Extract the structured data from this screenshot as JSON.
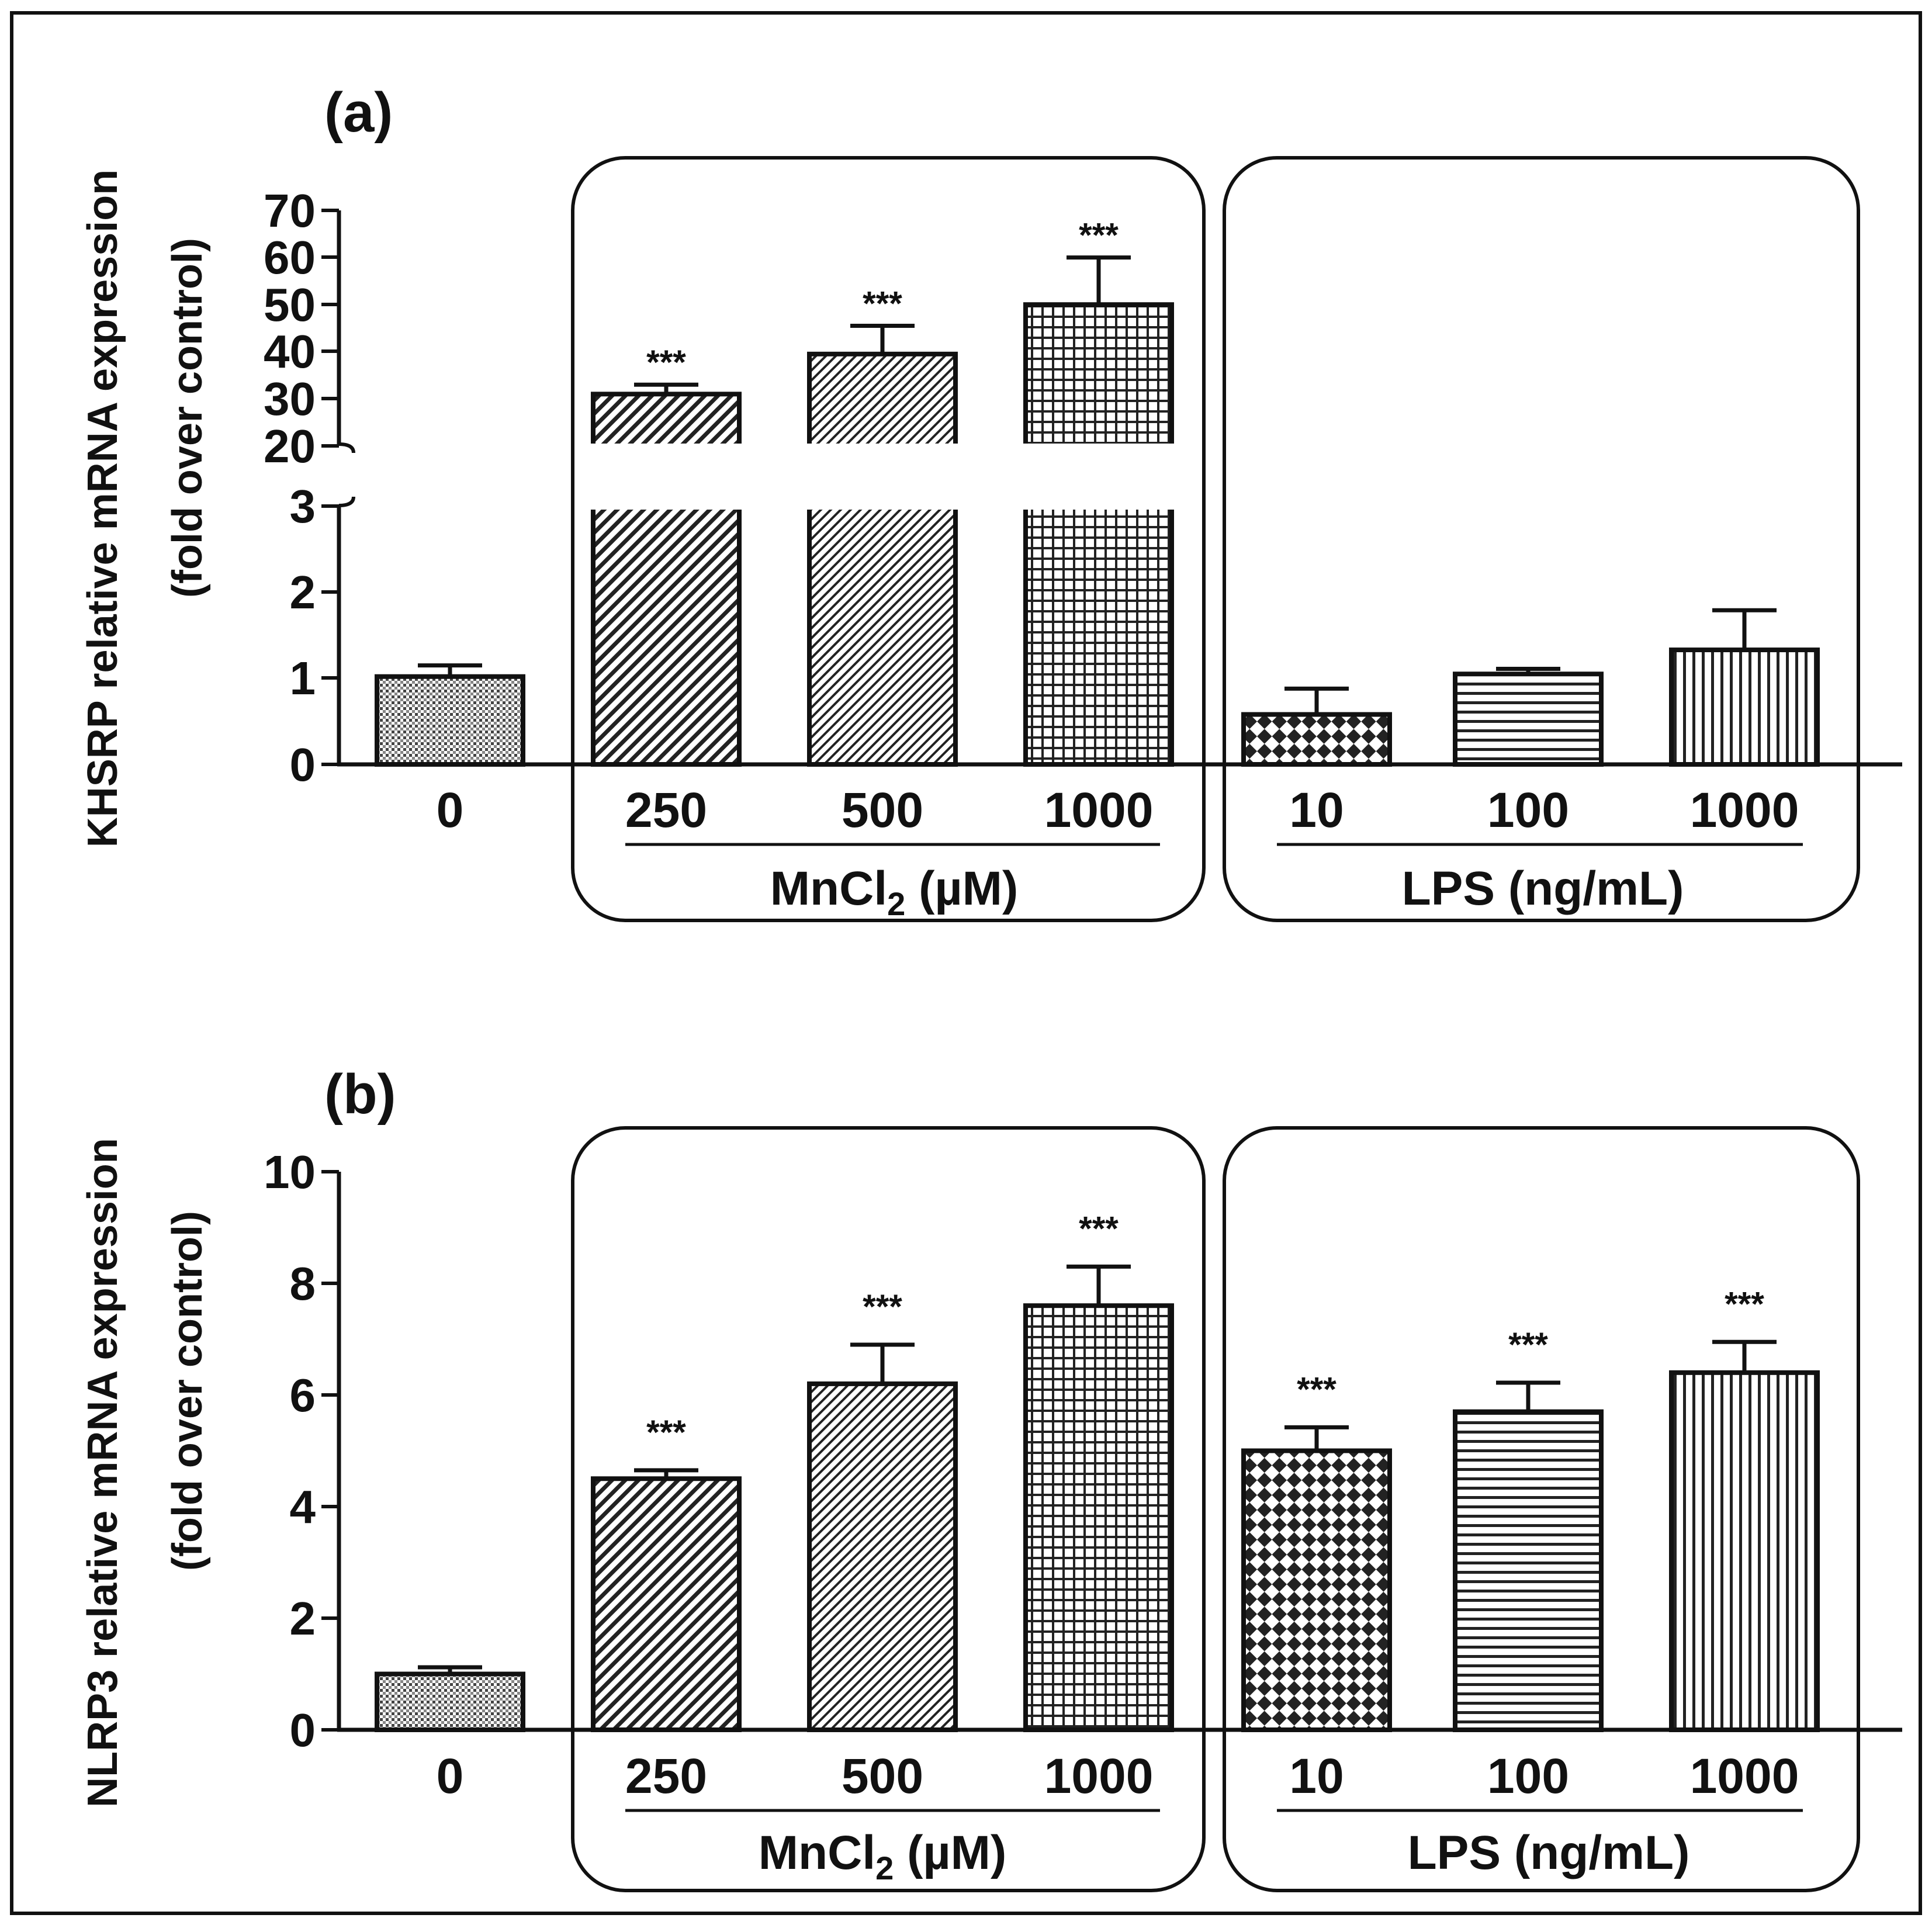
{
  "chart_data": [
    {
      "panel_label": "(a)",
      "type": "bar",
      "ylabel_line1": "KHSRP relative mRNA expression",
      "ylabel_line2": "(fold over control)",
      "y_axis_break": {
        "lower_ticks": [
          "0",
          "1",
          "2",
          "3"
        ],
        "upper_ticks": [
          "20",
          "30",
          "40",
          "50",
          "60",
          "70"
        ],
        "lower_range": [
          0,
          3
        ],
        "upper_range": [
          20,
          70
        ]
      },
      "categories": [
        "0",
        "250",
        "500",
        "1000",
        "10",
        "100",
        "1000"
      ],
      "values": [
        1.02,
        31,
        39.5,
        50,
        0.58,
        1.05,
        1.33
      ],
      "errors": [
        0.13,
        2,
        6,
        10,
        0.3,
        0.06,
        0.46
      ],
      "significance": [
        "",
        "***",
        "***",
        "***",
        "",
        "",
        ""
      ],
      "groups": [
        {
          "label_main": "MnCl",
          "label_sub": "2",
          "label_unit": " (µM)"
        },
        {
          "label_main": "LPS (ng/mL)",
          "label_sub": "",
          "label_unit": ""
        }
      ]
    },
    {
      "panel_label": "(b)",
      "type": "bar",
      "ylabel_line1": "NLRP3 relative mRNA expression",
      "ylabel_line2": "(fold over control)",
      "yticks": [
        "0",
        "2",
        "4",
        "6",
        "8",
        "10"
      ],
      "ylim": [
        0,
        10
      ],
      "categories": [
        "0",
        "250",
        "500",
        "1000",
        "10",
        "100",
        "1000"
      ],
      "values": [
        1.0,
        4.5,
        6.2,
        7.6,
        5.0,
        5.7,
        6.4
      ],
      "errors": [
        0.12,
        0.15,
        0.7,
        0.7,
        0.42,
        0.52,
        0.55
      ],
      "significance": [
        "",
        "***",
        "***",
        "***",
        "***",
        "***",
        "***"
      ],
      "groups": [
        {
          "label_main": "MnCl",
          "label_sub": "2",
          "label_unit": " (µM)"
        },
        {
          "label_main": "LPS (ng/mL)",
          "label_sub": "",
          "label_unit": ""
        }
      ]
    }
  ]
}
